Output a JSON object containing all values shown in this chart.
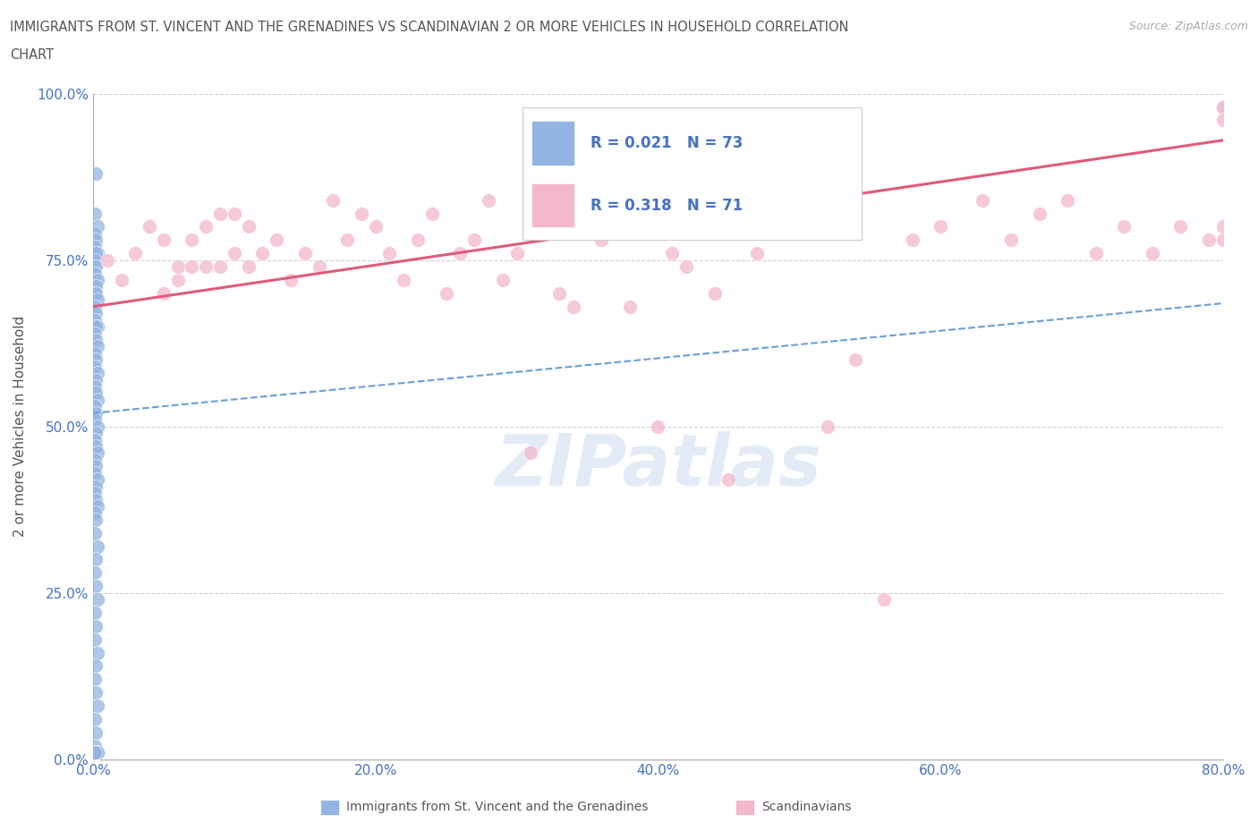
{
  "title_line1": "IMMIGRANTS FROM ST. VINCENT AND THE GRENADINES VS SCANDINAVIAN 2 OR MORE VEHICLES IN HOUSEHOLD CORRELATION",
  "title_line2": "CHART",
  "source_text": "Source: ZipAtlas.com",
  "ylabel": "2 or more Vehicles in Household",
  "legend_label1": "Immigrants from St. Vincent and the Grenadines",
  "legend_label2": "Scandinavians",
  "R1": 0.021,
  "N1": 73,
  "R2": 0.318,
  "N2": 71,
  "xlim": [
    0.0,
    0.8
  ],
  "ylim": [
    0.0,
    1.0
  ],
  "xtick_labels": [
    "0.0%",
    "20.0%",
    "40.0%",
    "60.0%",
    "80.0%"
  ],
  "xtick_vals": [
    0.0,
    0.2,
    0.4,
    0.6,
    0.8
  ],
  "ytick_labels": [
    "0.0%",
    "25.0%",
    "50.0%",
    "75.0%",
    "100.0%"
  ],
  "ytick_vals": [
    0.0,
    0.25,
    0.5,
    0.75,
    1.0
  ],
  "color_blue": "#92b4e3",
  "color_blue_line": "#6a9fd8",
  "color_pink": "#f4b8cb",
  "color_pink_line": "#e05a7a",
  "color_text_blue": "#4472c4",
  "watermark_text": "ZIPatlas",
  "blue_trend": [
    0.0,
    0.52,
    0.8,
    0.685
  ],
  "pink_trend": [
    0.0,
    0.68,
    0.8,
    0.93
  ],
  "blue_x": [
    0.002,
    0.001,
    0.003,
    0.001,
    0.002,
    0.001,
    0.003,
    0.002,
    0.001,
    0.002,
    0.001,
    0.003,
    0.002,
    0.001,
    0.002,
    0.003,
    0.001,
    0.002,
    0.001,
    0.003,
    0.002,
    0.001,
    0.002,
    0.003,
    0.001,
    0.002,
    0.001,
    0.003,
    0.002,
    0.001,
    0.002,
    0.003,
    0.001,
    0.002,
    0.001,
    0.003,
    0.002,
    0.001,
    0.002,
    0.003,
    0.001,
    0.002,
    0.001,
    0.003,
    0.002,
    0.001,
    0.002,
    0.003,
    0.001,
    0.002,
    0.001,
    0.003,
    0.002,
    0.001,
    0.002,
    0.003,
    0.001,
    0.002,
    0.001,
    0.003,
    0.002,
    0.001,
    0.002,
    0.003,
    0.001,
    0.002,
    0.001,
    0.003,
    0.002,
    0.001,
    0.002,
    0.003,
    0.001
  ],
  "blue_y": [
    0.88,
    0.82,
    0.8,
    0.79,
    0.78,
    0.77,
    0.76,
    0.76,
    0.75,
    0.74,
    0.73,
    0.72,
    0.71,
    0.7,
    0.7,
    0.69,
    0.68,
    0.67,
    0.66,
    0.65,
    0.65,
    0.64,
    0.63,
    0.62,
    0.61,
    0.6,
    0.59,
    0.58,
    0.57,
    0.56,
    0.55,
    0.54,
    0.53,
    0.52,
    0.51,
    0.5,
    0.49,
    0.48,
    0.47,
    0.46,
    0.45,
    0.44,
    0.43,
    0.42,
    0.41,
    0.4,
    0.39,
    0.38,
    0.37,
    0.36,
    0.34,
    0.32,
    0.3,
    0.28,
    0.26,
    0.24,
    0.22,
    0.2,
    0.18,
    0.16,
    0.14,
    0.12,
    0.1,
    0.08,
    0.06,
    0.04,
    0.02,
    0.01,
    0.01,
    0.01,
    0.01,
    0.01,
    0.01
  ],
  "pink_x": [
    0.01,
    0.02,
    0.03,
    0.04,
    0.05,
    0.05,
    0.06,
    0.06,
    0.07,
    0.07,
    0.08,
    0.08,
    0.09,
    0.09,
    0.1,
    0.1,
    0.11,
    0.11,
    0.12,
    0.13,
    0.14,
    0.15,
    0.16,
    0.17,
    0.18,
    0.19,
    0.2,
    0.21,
    0.22,
    0.23,
    0.24,
    0.25,
    0.26,
    0.27,
    0.28,
    0.29,
    0.3,
    0.31,
    0.32,
    0.33,
    0.34,
    0.35,
    0.36,
    0.38,
    0.4,
    0.41,
    0.42,
    0.43,
    0.44,
    0.45,
    0.47,
    0.5,
    0.52,
    0.54,
    0.56,
    0.58,
    0.6,
    0.63,
    0.65,
    0.67,
    0.69,
    0.71,
    0.73,
    0.75,
    0.77,
    0.79,
    0.8,
    0.8,
    0.8,
    0.8,
    0.8
  ],
  "pink_y": [
    0.75,
    0.72,
    0.76,
    0.8,
    0.7,
    0.78,
    0.72,
    0.74,
    0.74,
    0.78,
    0.74,
    0.8,
    0.74,
    0.82,
    0.76,
    0.82,
    0.74,
    0.8,
    0.76,
    0.78,
    0.72,
    0.76,
    0.74,
    0.84,
    0.78,
    0.82,
    0.8,
    0.76,
    0.72,
    0.78,
    0.82,
    0.7,
    0.76,
    0.78,
    0.84,
    0.72,
    0.76,
    0.46,
    0.8,
    0.7,
    0.68,
    0.84,
    0.78,
    0.68,
    0.5,
    0.76,
    0.74,
    0.82,
    0.7,
    0.42,
    0.76,
    0.8,
    0.5,
    0.6,
    0.24,
    0.78,
    0.8,
    0.84,
    0.78,
    0.82,
    0.84,
    0.76,
    0.8,
    0.76,
    0.8,
    0.78,
    0.98,
    0.98,
    0.96,
    0.78,
    0.8
  ]
}
